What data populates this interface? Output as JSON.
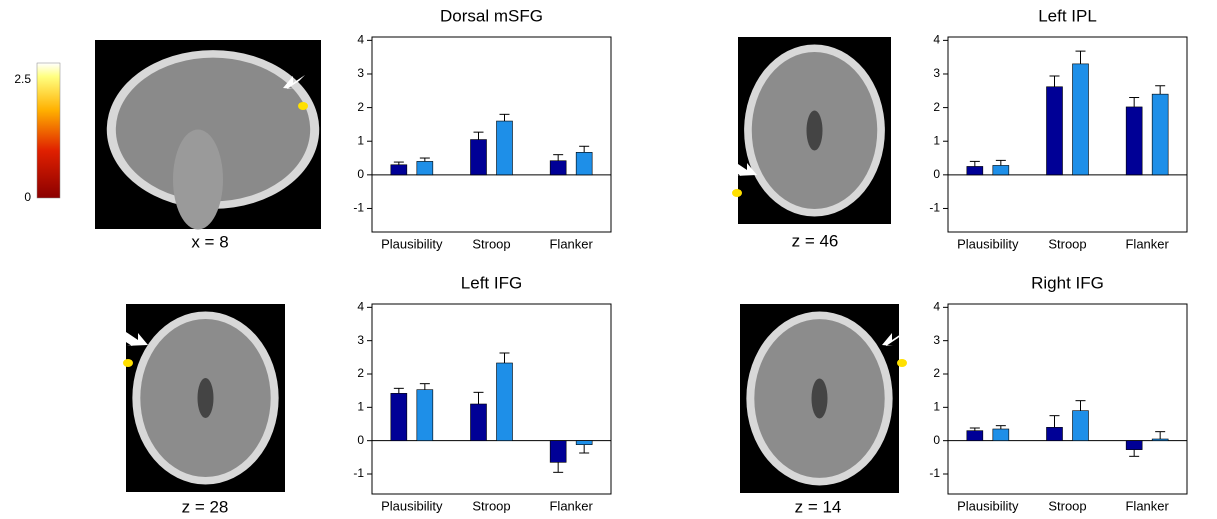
{
  "colorbar": {
    "lim": [
      0,
      2.85
    ],
    "ticks": [
      0,
      2.5
    ]
  },
  "images": [
    {
      "label": "x = 8"
    },
    {
      "label": "z = 46"
    },
    {
      "label": "z = 28"
    },
    {
      "label": "z = 14"
    }
  ],
  "chart_data": [
    {
      "type": "bar",
      "title": "Dorsal mSFG",
      "categories": [
        "Plausibility",
        "Stroop",
        "Flanker"
      ],
      "series": [
        {
          "color": "#000096",
          "values": [
            0.3,
            1.05,
            0.42
          ],
          "errors": [
            0.08,
            0.22,
            0.18
          ]
        },
        {
          "color": "#1e8fe8",
          "values": [
            0.4,
            1.6,
            0.67
          ],
          "errors": [
            0.1,
            0.2,
            0.18
          ]
        }
      ],
      "ylim": [
        -1.7,
        4.1
      ],
      "yticks": [
        -1,
        0,
        1,
        2,
        3,
        4
      ]
    },
    {
      "type": "bar",
      "title": "Left IPL",
      "categories": [
        "Plausibility",
        "Stroop",
        "Flanker"
      ],
      "series": [
        {
          "color": "#000096",
          "values": [
            0.25,
            2.62,
            2.02
          ],
          "errors": [
            0.15,
            0.32,
            0.28
          ]
        },
        {
          "color": "#1e8fe8",
          "values": [
            0.28,
            3.3,
            2.4
          ],
          "errors": [
            0.15,
            0.38,
            0.25
          ]
        }
      ],
      "ylim": [
        -1.7,
        4.1
      ],
      "yticks": [
        -1,
        0,
        1,
        2,
        3,
        4
      ]
    },
    {
      "type": "bar",
      "title": "Left IFG",
      "categories": [
        "Plausibility",
        "Stroop",
        "Flanker"
      ],
      "series": [
        {
          "color": "#000096",
          "values": [
            1.42,
            1.1,
            -0.65
          ],
          "errors": [
            0.15,
            0.35,
            0.3
          ]
        },
        {
          "color": "#1e8fe8",
          "values": [
            1.53,
            2.33,
            -0.12
          ],
          "errors": [
            0.18,
            0.3,
            0.25
          ]
        }
      ],
      "ylim": [
        -1.6,
        4.1
      ],
      "yticks": [
        -1,
        0,
        1,
        2,
        3,
        4
      ]
    },
    {
      "type": "bar",
      "title": "Right IFG",
      "categories": [
        "Plausibility",
        "Stroop",
        "Flanker"
      ],
      "series": [
        {
          "color": "#000096",
          "values": [
            0.3,
            0.4,
            -0.27
          ],
          "errors": [
            0.08,
            0.35,
            0.2
          ]
        },
        {
          "color": "#1e8fe8",
          "values": [
            0.35,
            0.9,
            0.05
          ],
          "errors": [
            0.1,
            0.3,
            0.22
          ]
        }
      ],
      "ylim": [
        -1.6,
        4.1
      ],
      "yticks": [
        -1,
        0,
        1,
        2,
        3,
        4
      ]
    }
  ]
}
